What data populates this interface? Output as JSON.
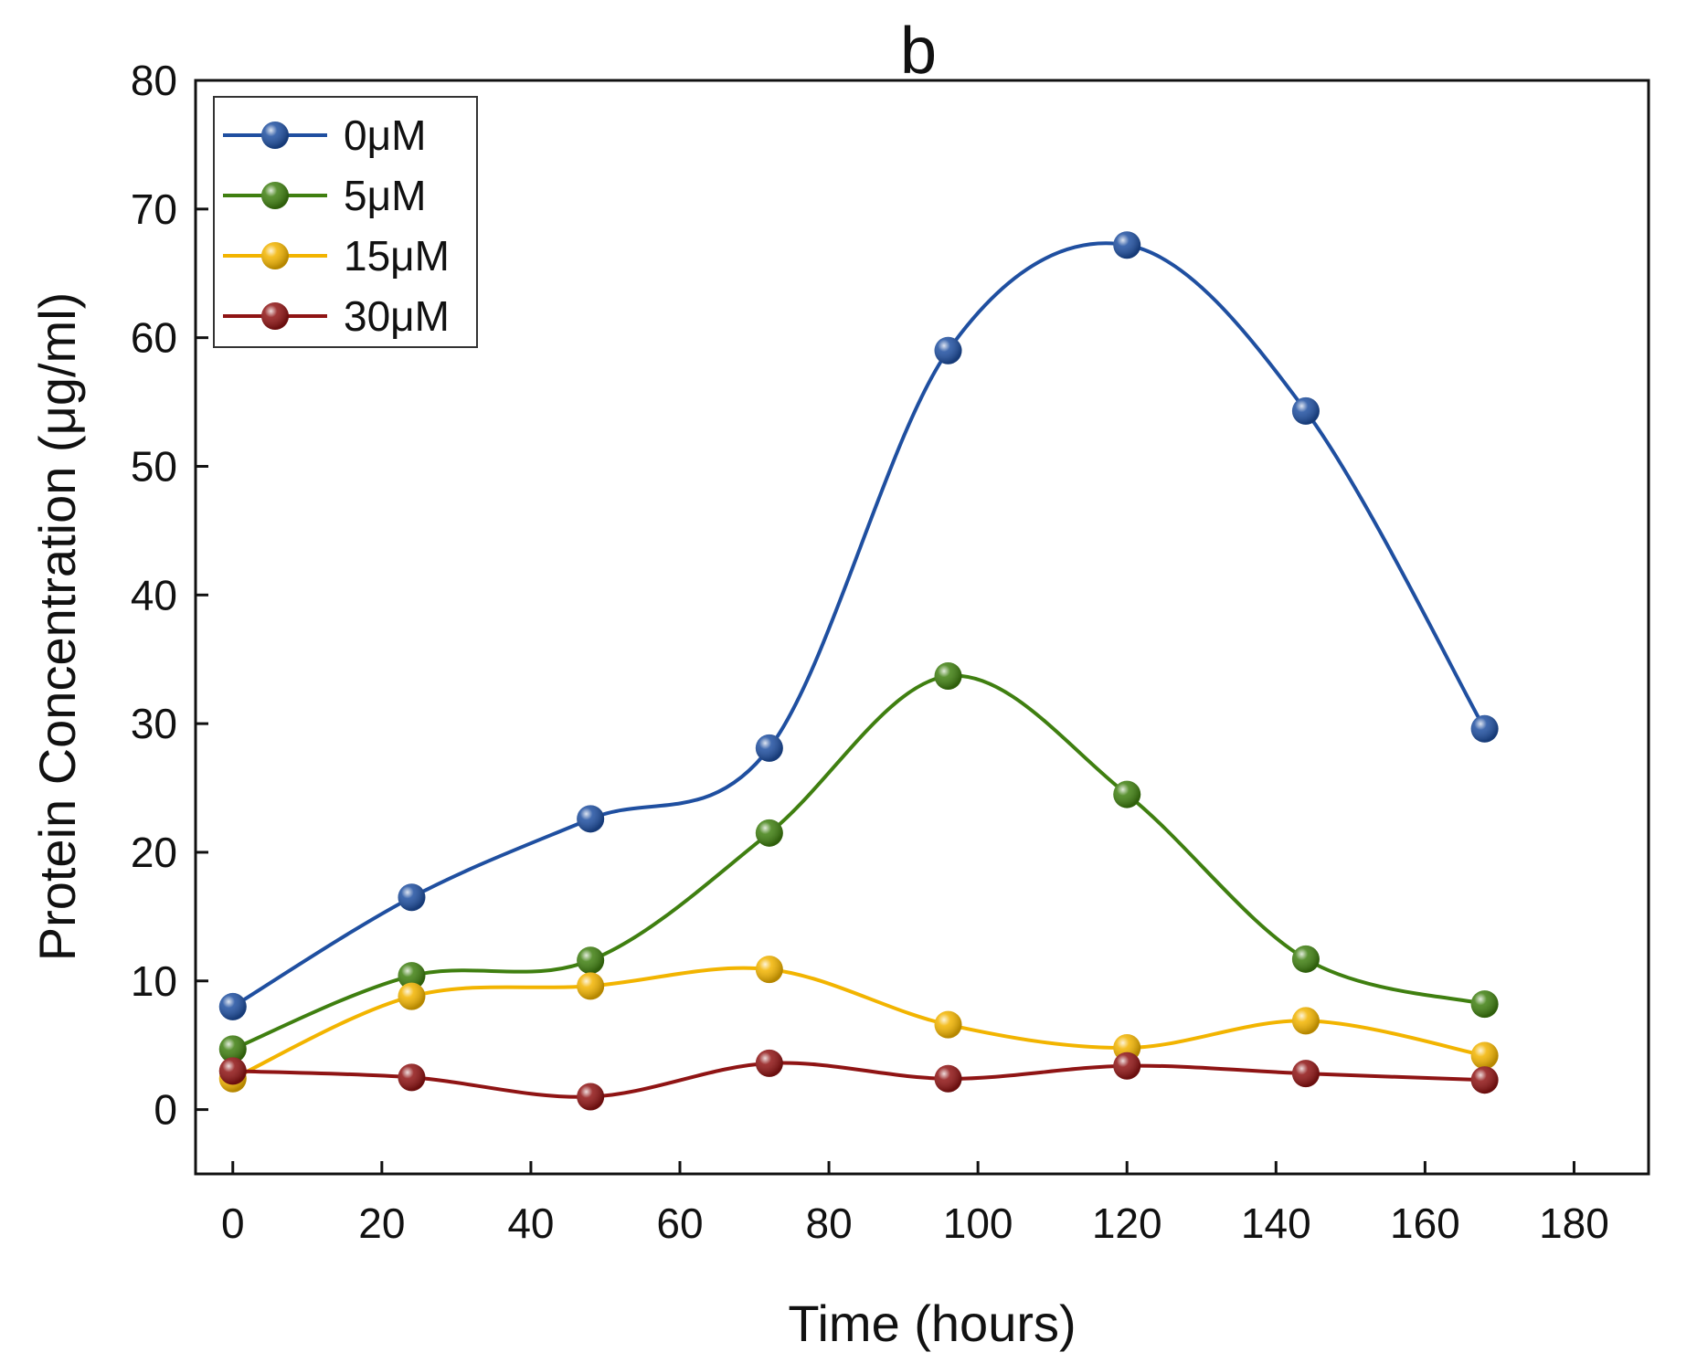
{
  "chart_data": {
    "type": "line",
    "title": "b",
    "xlabel": "Time (hours)",
    "ylabel": "Protein Concentration (μg/ml)",
    "xlim": [
      -5,
      190
    ],
    "ylim": [
      -5,
      80
    ],
    "xticks": [
      0,
      20,
      40,
      60,
      80,
      100,
      120,
      140,
      160,
      180
    ],
    "yticks": [
      0,
      10,
      20,
      30,
      40,
      50,
      60,
      70,
      80
    ],
    "grid": false,
    "legend_position": "top-left",
    "x": [
      0,
      24,
      48,
      72,
      96,
      120,
      144,
      168
    ],
    "series": [
      {
        "name": "0μM",
        "color": "#1f4fa0",
        "values": [
          8.0,
          16.5,
          22.6,
          28.1,
          59.0,
          67.2,
          54.3,
          29.6
        ]
      },
      {
        "name": "5μM",
        "color": "#3f7f10",
        "values": [
          4.7,
          10.4,
          11.6,
          21.5,
          33.7,
          24.5,
          11.7,
          8.2
        ]
      },
      {
        "name": "15μM",
        "color": "#f2b400",
        "values": [
          2.4,
          8.8,
          9.6,
          10.9,
          6.6,
          4.8,
          6.9,
          4.2
        ]
      },
      {
        "name": "30μM",
        "color": "#8f1414",
        "values": [
          3.0,
          2.5,
          1.0,
          3.6,
          2.4,
          3.4,
          2.8,
          2.3
        ]
      }
    ]
  }
}
